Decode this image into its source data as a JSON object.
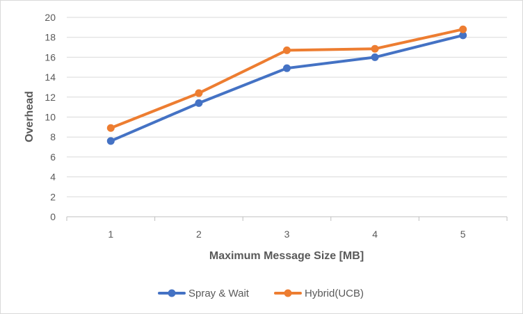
{
  "chart_data": {
    "type": "line",
    "x": [
      1,
      2,
      3,
      4,
      5
    ],
    "categories": [
      "1",
      "2",
      "3",
      "4",
      "5"
    ],
    "series": [
      {
        "name": "Spray & Wait",
        "values": [
          7.6,
          11.4,
          14.9,
          16.0,
          18.2
        ],
        "color": "#4472C4"
      },
      {
        "name": "Hybrid(UCB)",
        "values": [
          8.9,
          12.4,
          16.7,
          16.85,
          18.8
        ],
        "color": "#ED7D31"
      }
    ],
    "title": "",
    "xlabel": "Maximum Message Size [MB]",
    "ylabel": "Overhead",
    "ylim": [
      0,
      20
    ],
    "yticks": [
      "0",
      "2",
      "4",
      "6",
      "8",
      "10",
      "12",
      "14",
      "16",
      "18",
      "20"
    ],
    "grid": "horizontal",
    "legend": "bottom"
  }
}
